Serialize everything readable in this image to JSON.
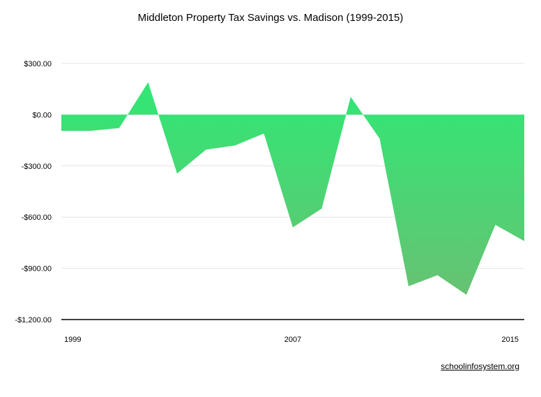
{
  "chart_data": {
    "type": "area",
    "title": "Middleton Property Tax Savings vs. Madison (1999-2015)",
    "x": [
      1999,
      2000,
      2001,
      2002,
      2003,
      2004,
      2005,
      2006,
      2007,
      2008,
      2009,
      2010,
      2011,
      2012,
      2013,
      2014,
      2015
    ],
    "x_tick_labels": [
      "1999",
      "2007",
      "2015"
    ],
    "x_ticks": [
      1999,
      2007,
      2015
    ],
    "series": [
      {
        "values": [
          -95,
          -95,
          -78,
          190,
          -345,
          -205,
          -180,
          -110,
          -660,
          -550,
          105,
          -140,
          -1005,
          -940,
          -1055,
          -645,
          -740
        ]
      }
    ],
    "ylim": [
      -1200,
      300
    ],
    "y_ticks": [
      300,
      0,
      -300,
      -600,
      -900,
      -1200
    ],
    "y_tick_labels": [
      "$300.00",
      "$0.00",
      "-$300.00",
      "-$600.00",
      "-$900.00",
      "-$1,200.00"
    ],
    "colors": {
      "fill_top": "#2BEB75",
      "fill_bottom": "#6DBE73",
      "grid": "#E4E4E4",
      "axis": "#000000"
    },
    "grid": true,
    "legend": "none"
  },
  "footer": {
    "source": "schoolinfosystem.org"
  }
}
